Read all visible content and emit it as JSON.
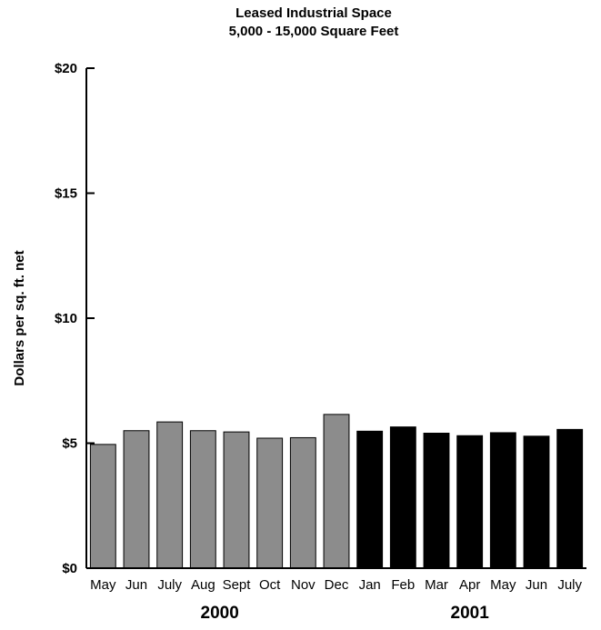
{
  "chart_data": {
    "type": "bar",
    "title": "Leased Industrial Space",
    "subtitle": "5,000 - 15,000 Square Feet",
    "ylabel": "Dollars per sq. ft. net",
    "xlabel": "",
    "ylim": [
      0,
      20
    ],
    "yticks": [
      {
        "value": 0,
        "label": "$0"
      },
      {
        "value": 5,
        "label": "$5"
      },
      {
        "value": 10,
        "label": "$10"
      },
      {
        "value": 15,
        "label": "$15"
      },
      {
        "value": 20,
        "label": "$20"
      }
    ],
    "categories": [
      "May",
      "Jun",
      "July",
      "Aug",
      "Sept",
      "Oct",
      "Nov",
      "Dec",
      "Jan",
      "Feb",
      "Mar",
      "Apr",
      "May",
      "Jun",
      "July"
    ],
    "values": [
      4.95,
      5.5,
      5.85,
      5.5,
      5.45,
      5.2,
      5.22,
      6.15,
      5.48,
      5.65,
      5.4,
      5.3,
      5.42,
      5.28,
      5.55
    ],
    "groups": [
      {
        "label": "2000",
        "start": 0,
        "end": 7,
        "color": "#8c8c8c"
      },
      {
        "label": "2001",
        "start": 8,
        "end": 14,
        "color": "#000000"
      }
    ],
    "grid": false,
    "legend": "none"
  }
}
